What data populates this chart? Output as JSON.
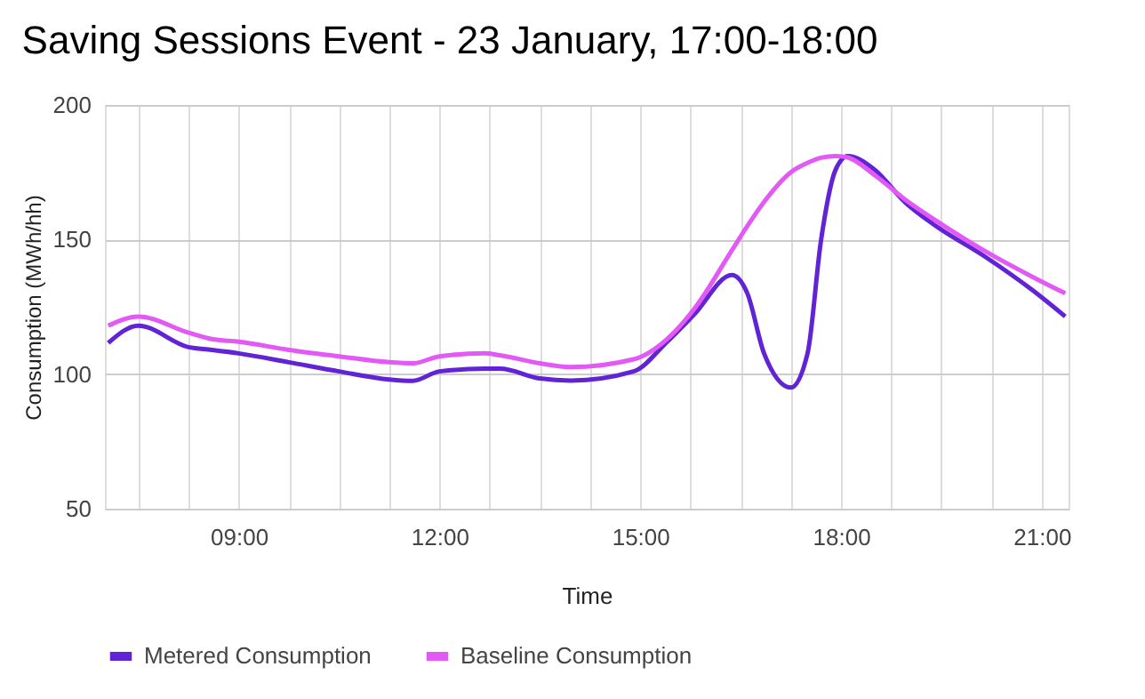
{
  "chart_data": {
    "type": "line",
    "title": "Saving Sessions Event - 23 January, 17:00-18:00",
    "xlabel": "Time",
    "ylabel": "Consumption (MWh/hh)",
    "x": [
      7.05,
      7.5,
      8.25,
      8.6,
      9.0,
      9.75,
      10.5,
      11.25,
      11.6,
      12.0,
      12.67,
      12.9,
      13.5,
      13.96,
      14.9,
      15.4,
      15.8,
      16.37,
      16.6,
      16.85,
      17.25,
      17.5,
      17.7,
      17.92,
      18.1,
      18.5,
      18.95,
      19.42,
      20.13,
      20.87,
      21.35
    ],
    "series": [
      {
        "name": "Metered Consumption",
        "color": "#6123d6",
        "values": [
          111.6,
          118,
          110,
          109,
          107.7,
          104.4,
          101,
          98,
          97.5,
          101,
          102,
          102,
          98.4,
          97.6,
          101,
          112,
          122,
          136.8,
          130,
          107.7,
          95,
          107.7,
          149.5,
          176,
          181,
          176,
          164,
          155,
          144,
          131,
          121.4
        ]
      },
      {
        "name": "Baseline Consumption",
        "color": "#e259f5",
        "values": [
          118,
          121.4,
          115.4,
          113,
          112,
          109,
          106.6,
          104.4,
          104,
          106.6,
          107.7,
          107,
          104,
          102.6,
          105.5,
          113,
          124,
          146,
          155,
          164,
          175,
          178.5,
          180.4,
          181,
          180.5,
          174,
          165,
          157,
          146,
          136,
          130
        ]
      }
    ],
    "xlim": [
      7.0,
      21.4
    ],
    "xticks": [
      {
        "value": 7.5,
        "label": null
      },
      {
        "value": 8.25,
        "label": null
      },
      {
        "value": 9,
        "label": "09:00"
      },
      {
        "value": 9.75,
        "label": null
      },
      {
        "value": 10.5,
        "label": null
      },
      {
        "value": 11.25,
        "label": null
      },
      {
        "value": 12,
        "label": "12:00"
      },
      {
        "value": 12.75,
        "label": null
      },
      {
        "value": 13.5,
        "label": null
      },
      {
        "value": 14.25,
        "label": null
      },
      {
        "value": 15,
        "label": "15:00"
      },
      {
        "value": 15.75,
        "label": null
      },
      {
        "value": 16.5,
        "label": null
      },
      {
        "value": 17.25,
        "label": null
      },
      {
        "value": 18,
        "label": "18:00"
      },
      {
        "value": 18.75,
        "label": null
      },
      {
        "value": 19.5,
        "label": null
      },
      {
        "value": 20.25,
        "label": null
      },
      {
        "value": 21,
        "label": "21:00"
      }
    ],
    "ylim": [
      50,
      200
    ],
    "yticks": [
      50,
      100,
      150,
      200
    ],
    "grid": true,
    "legend": "bottom",
    "marker": "none",
    "line_style": "solid"
  }
}
